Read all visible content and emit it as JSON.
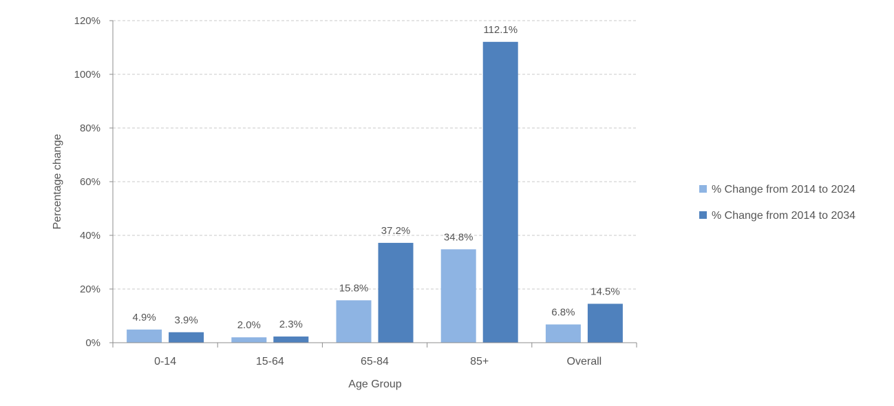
{
  "chart_data": {
    "type": "bar",
    "title": "",
    "xlabel": "Age Group",
    "ylabel": "Percentage change",
    "ylim": [
      0,
      120
    ],
    "yticks": [
      0,
      20,
      40,
      60,
      80,
      100,
      120
    ],
    "ytick_labels": [
      "0%",
      "20%",
      "40%",
      "60%",
      "80%",
      "100%",
      "120%"
    ],
    "grid": true,
    "legend_position": "right",
    "categories": [
      "0-14",
      "15-64",
      "65-84",
      "85+",
      "Overall"
    ],
    "series": [
      {
        "name": "% Change from 2014 to 2024",
        "color": "#8EB4E3",
        "values": [
          4.9,
          2.0,
          15.8,
          34.8,
          6.8
        ],
        "labels": [
          "4.9%",
          "2.0%",
          "15.8%",
          "34.8%",
          "6.8%"
        ]
      },
      {
        "name": "% Change from 2014 to 2034",
        "color": "#4F81BD",
        "values": [
          3.9,
          2.3,
          37.2,
          112.1,
          14.5
        ],
        "labels": [
          "3.9%",
          "2.3%",
          "37.2%",
          "112.1%",
          "14.5%"
        ]
      }
    ]
  }
}
